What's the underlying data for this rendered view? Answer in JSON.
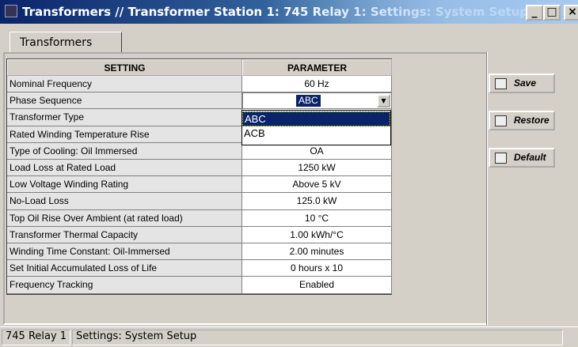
{
  "window": {
    "title": "Transformers // Transformer Station 1: 745 Relay 1: Settings: System Setup"
  },
  "tab": "Transformers",
  "table": {
    "headers": [
      "SETTING",
      "PARAMETER"
    ],
    "rows": [
      {
        "setting": "Nominal Frequency",
        "parameter": "60 Hz"
      },
      {
        "setting": "Phase Sequence",
        "parameter": "ABC"
      },
      {
        "setting": "Transformer Type"
      },
      {
        "setting": "Rated Winding Temperature Rise"
      },
      {
        "setting": "Type of Cooling: Oil Immersed",
        "parameter": "OA"
      },
      {
        "setting": "Load Loss at Rated Load",
        "parameter": "1250 kW"
      },
      {
        "setting": "Low Voltage Winding Rating",
        "parameter": "Above 5 kV"
      },
      {
        "setting": "No-Load Loss",
        "parameter": "125.0 kW"
      },
      {
        "setting": "Top Oil Rise Over Ambient (at rated load)",
        "parameter": "10 °C"
      },
      {
        "setting": "Transformer Thermal Capacity",
        "parameter": "1.00 kWh/°C"
      },
      {
        "setting": "Winding Time Constant: Oil-Immersed",
        "parameter": "2.00 minutes"
      },
      {
        "setting": "Set Initial Accumulated Loss of Life",
        "parameter": "0 hours x 10"
      },
      {
        "setting": "Frequency Tracking",
        "parameter": "Enabled"
      }
    ]
  },
  "dropdown": {
    "options": [
      "ABC",
      "ACB"
    ]
  },
  "buttons": [
    "Save",
    "Restore",
    "Default"
  ],
  "status": [
    "745 Relay 1",
    "Settings: System Setup"
  ]
}
